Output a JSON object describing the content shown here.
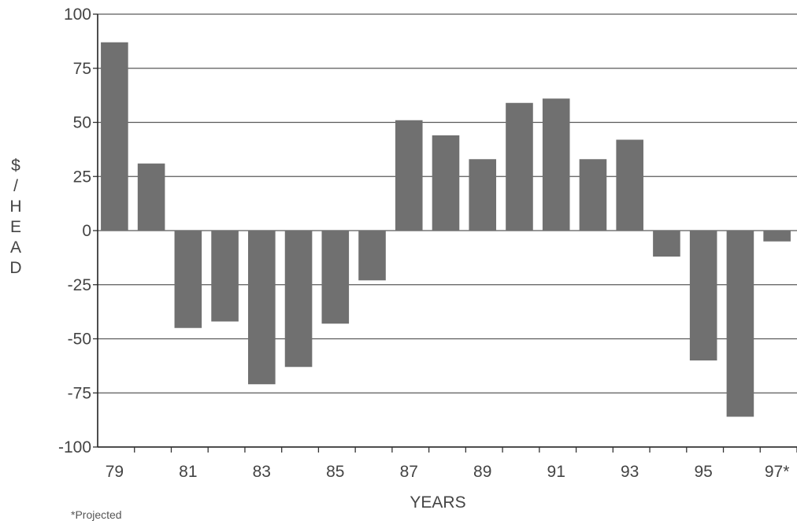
{
  "chart_data": {
    "type": "bar",
    "title": "",
    "xlabel": "YEARS",
    "ylabel": "$/HEAD",
    "ylim": [
      -100,
      100
    ],
    "yticks": [
      100,
      75,
      50,
      25,
      0,
      -25,
      -50,
      -75,
      -100
    ],
    "categories": [
      "79",
      "80",
      "81",
      "82",
      "83",
      "84",
      "85",
      "86",
      "87",
      "88",
      "89",
      "90",
      "91",
      "92",
      "93",
      "94",
      "95",
      "96",
      "97*"
    ],
    "xtick_labels": [
      "79",
      "81",
      "83",
      "85",
      "87",
      "89",
      "91",
      "93",
      "95",
      "97*"
    ],
    "values": [
      87,
      31,
      -45,
      -42,
      -71,
      -63,
      -43,
      -23,
      51,
      44,
      33,
      59,
      61,
      33,
      42,
      -12,
      -60,
      -86,
      -5
    ],
    "grid": true,
    "bar_color": "#707070",
    "footnote": "*Projected"
  }
}
